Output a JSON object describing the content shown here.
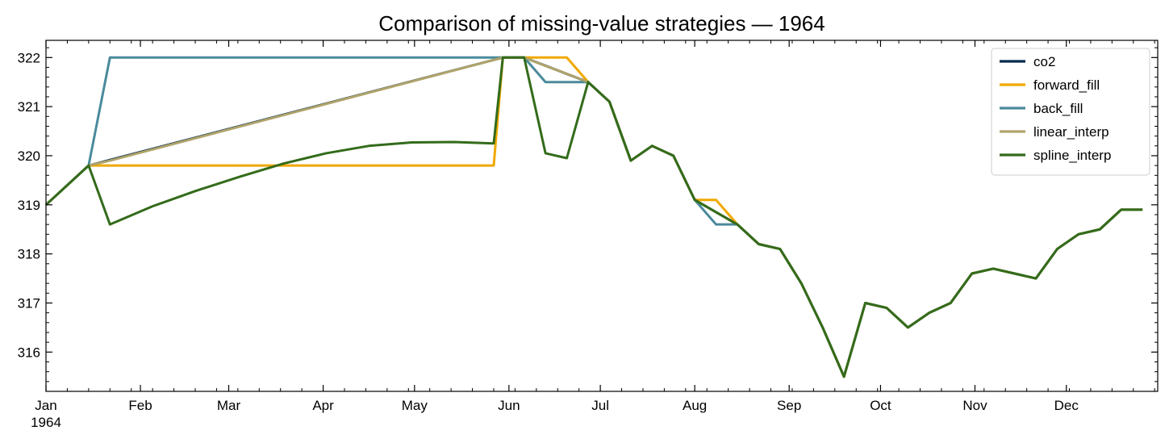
{
  "chart_data": {
    "type": "line",
    "title": "Comparison of missing-value strategies — 1964",
    "xlabel": "",
    "ylabel": "",
    "x_axis": {
      "kind": "date",
      "range": [
        "1964-01-01",
        "1964-12-31"
      ],
      "major_ticks": [
        {
          "date": "1964-01-01",
          "label": "Jan",
          "sublabel": "1964"
        },
        {
          "date": "1964-02-01",
          "label": "Feb"
        },
        {
          "date": "1964-03-01",
          "label": "Mar"
        },
        {
          "date": "1964-04-01",
          "label": "Apr"
        },
        {
          "date": "1964-05-01",
          "label": "May"
        },
        {
          "date": "1964-06-01",
          "label": "Jun"
        },
        {
          "date": "1964-07-01",
          "label": "Jul"
        },
        {
          "date": "1964-08-01",
          "label": "Aug"
        },
        {
          "date": "1964-09-01",
          "label": "Sep"
        },
        {
          "date": "1964-10-01",
          "label": "Oct"
        },
        {
          "date": "1964-11-01",
          "label": "Nov"
        },
        {
          "date": "1964-12-01",
          "label": "Dec"
        }
      ],
      "minor_tick_interval": "weekly"
    },
    "y_axis": {
      "range": [
        315.2,
        322.35
      ],
      "ticks": [
        316,
        317,
        318,
        319,
        320,
        321,
        322
      ],
      "minor_ticks": true
    },
    "grid": false,
    "legend": "top-right",
    "x": [
      "1964-01-01",
      "1964-01-15",
      "1964-01-22",
      "1964-05-27",
      "1964-05-30",
      "1964-06-06",
      "1964-06-13",
      "1964-06-20",
      "1964-06-27",
      "1964-07-04",
      "1964-07-11",
      "1964-07-18",
      "1964-07-25",
      "1964-08-01",
      "1964-08-08",
      "1964-08-15",
      "1964-08-22",
      "1964-08-29",
      "1964-09-05",
      "1964-09-12",
      "1964-09-19",
      "1964-09-26",
      "1964-10-03",
      "1964-10-10",
      "1964-10-17",
      "1964-10-24",
      "1964-10-31",
      "1964-11-07",
      "1964-11-14",
      "1964-11-21",
      "1964-11-28",
      "1964-12-05",
      "1964-12-12",
      "1964-12-19",
      "1964-12-26"
    ],
    "series": [
      {
        "name": "co2",
        "color": "#002b4e",
        "values": [
          319.0,
          319.8,
          null,
          null,
          322.0,
          322.0,
          null,
          null,
          321.5,
          321.1,
          319.9,
          320.2,
          320.0,
          319.1,
          null,
          318.6,
          318.2,
          318.1,
          317.4,
          316.5,
          315.5,
          317.0,
          316.9,
          316.5,
          316.8,
          317.0,
          317.6,
          317.7,
          317.6,
          317.5,
          318.1,
          318.4,
          318.5,
          318.9,
          318.9
        ]
      },
      {
        "name": "forward_fill",
        "color": "#f0a800",
        "values": [
          319.0,
          319.8,
          319.8,
          319.8,
          322.0,
          322.0,
          322.0,
          322.0,
          321.5,
          321.1,
          319.9,
          320.2,
          320.0,
          319.1,
          319.1,
          318.6,
          318.2,
          318.1,
          317.4,
          316.5,
          315.5,
          317.0,
          316.9,
          316.5,
          316.8,
          317.0,
          317.6,
          317.7,
          317.6,
          317.5,
          318.1,
          318.4,
          318.5,
          318.9,
          318.9
        ]
      },
      {
        "name": "back_fill",
        "color": "#4a8a9c",
        "values": [
          319.0,
          319.8,
          322.0,
          322.0,
          322.0,
          322.0,
          321.5,
          321.5,
          321.5,
          321.1,
          319.9,
          320.2,
          320.0,
          319.1,
          318.6,
          318.6,
          318.2,
          318.1,
          317.4,
          316.5,
          315.5,
          317.0,
          316.9,
          316.5,
          316.8,
          317.0,
          317.6,
          317.7,
          317.6,
          317.5,
          318.1,
          318.4,
          318.5,
          318.9,
          318.9
        ]
      },
      {
        "name": "linear_interp",
        "color": "#b0a46a",
        "values": [
          319.0,
          319.8,
          319.9,
          321.95,
          322.0,
          322.0,
          321.83,
          321.67,
          321.5,
          321.1,
          319.9,
          320.2,
          320.0,
          319.1,
          318.85,
          318.6,
          318.2,
          318.1,
          317.4,
          316.5,
          315.5,
          317.0,
          316.9,
          316.5,
          316.8,
          317.0,
          317.6,
          317.7,
          317.6,
          317.5,
          318.1,
          318.4,
          318.5,
          318.9,
          318.9
        ]
      },
      {
        "name": "spline_interp",
        "color": "#336b1a",
        "values": [
          319.0,
          319.8,
          318.6,
          320.25,
          322.0,
          322.0,
          320.05,
          319.95,
          321.5,
          321.1,
          319.9,
          320.2,
          320.0,
          319.1,
          318.85,
          318.6,
          318.2,
          318.1,
          317.4,
          316.5,
          315.5,
          317.0,
          316.9,
          316.5,
          316.8,
          317.0,
          317.6,
          317.7,
          317.6,
          317.5,
          318.1,
          318.4,
          318.5,
          318.9,
          318.9
        ],
        "smooth_segment": {
          "from": "1964-01-22",
          "to": "1964-05-27",
          "samples": [
            {
              "date": "1964-02-05",
              "value": 318.97
            },
            {
              "date": "1964-02-19",
              "value": 319.28
            },
            {
              "date": "1964-03-05",
              "value": 319.58
            },
            {
              "date": "1964-03-19",
              "value": 319.84
            },
            {
              "date": "1964-04-02",
              "value": 320.05
            },
            {
              "date": "1964-04-16",
              "value": 320.2
            },
            {
              "date": "1964-04-30",
              "value": 320.27
            },
            {
              "date": "1964-05-14",
              "value": 320.28
            }
          ]
        }
      }
    ]
  }
}
